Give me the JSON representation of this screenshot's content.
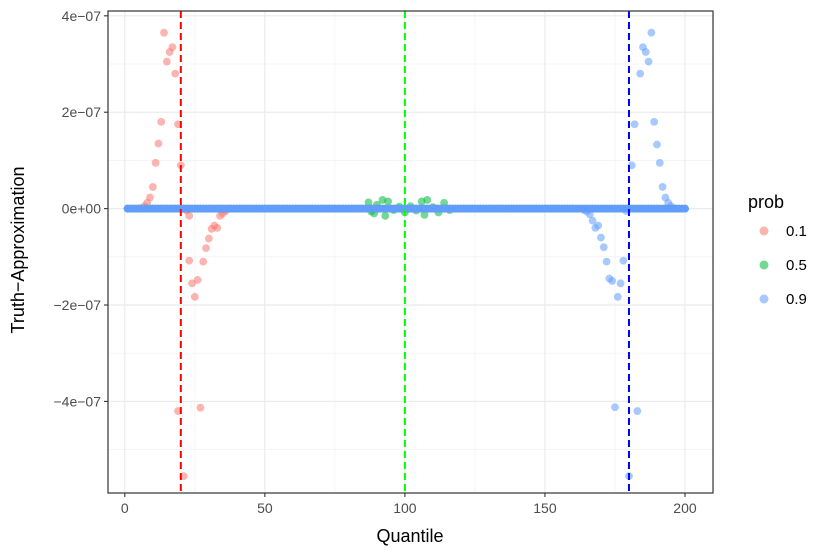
{
  "chart_data": {
    "type": "scatter",
    "xlabel": "Quantile",
    "ylabel": "Truth−Approximation",
    "xlim": [
      -6,
      210
    ],
    "ylim": [
      -5.9e-07,
      4.1e-07
    ],
    "x_ticks": [
      0,
      50,
      100,
      150,
      200
    ],
    "x_tick_labels": [
      "0",
      "50",
      "100",
      "150",
      "200"
    ],
    "y_ticks": [
      4e-07,
      2e-07,
      0,
      -2e-07,
      -4e-07
    ],
    "y_tick_labels": [
      "4e−07",
      "2e−07",
      "0e+00",
      "−2e−07",
      "−4e−07"
    ],
    "grid": true,
    "legend": {
      "title": "prob",
      "position": "right"
    },
    "series": [
      {
        "name": "0.1",
        "color": "#F8766D",
        "points": [
          [
            3,
            0.0
          ],
          [
            5,
            0.0
          ],
          [
            6,
            1e-09
          ],
          [
            7,
            5e-09
          ],
          [
            8,
            1.2e-08
          ],
          [
            9,
            2.3e-08
          ],
          [
            10,
            4.5e-08
          ],
          [
            11,
            9.5e-08
          ],
          [
            12,
            1.35e-07
          ],
          [
            13,
            1.8e-07
          ],
          [
            14,
            3.65e-07
          ],
          [
            15,
            3.05e-07
          ],
          [
            16,
            3.25e-07
          ],
          [
            17,
            3.35e-07
          ],
          [
            18,
            2.8e-07
          ],
          [
            19,
            1.75e-07
          ],
          [
            20,
            9e-08
          ],
          [
            21,
            -5.55e-07
          ],
          [
            22,
            -4e-09
          ],
          [
            23,
            -1.08e-07
          ],
          [
            23,
            -1.5e-08
          ],
          [
            24,
            -1.55e-07
          ],
          [
            25,
            -1.83e-07
          ],
          [
            26,
            -1.48e-07
          ],
          [
            27,
            -4.13e-07
          ],
          [
            28,
            -1.1e-07
          ],
          [
            29,
            -8.2e-08
          ],
          [
            30,
            -6.2e-08
          ],
          [
            31,
            -4.2e-08
          ],
          [
            32,
            -3.5e-08
          ],
          [
            33,
            -4e-08
          ],
          [
            34,
            -1.5e-08
          ],
          [
            35,
            -1e-08
          ],
          [
            36,
            -5e-09
          ],
          [
            19,
            -4.2e-07
          ]
        ],
        "zero_band": [
          1,
          160
        ]
      },
      {
        "name": "0.5",
        "color": "#00BA38",
        "points": [
          [
            87,
            1.3e-08
          ],
          [
            88,
            -6e-09
          ],
          [
            89,
            -1e-08
          ],
          [
            90,
            8e-09
          ],
          [
            92,
            1.8e-08
          ],
          [
            93,
            -1.5e-08
          ],
          [
            94,
            1.5e-08
          ],
          [
            96,
            -3e-09
          ],
          [
            98,
            4e-09
          ],
          [
            100,
            -8e-09
          ],
          [
            102,
            5e-09
          ],
          [
            104,
            -4e-09
          ],
          [
            106,
            1.5e-08
          ],
          [
            107,
            -1.3e-08
          ],
          [
            108,
            1.8e-08
          ],
          [
            110,
            3e-09
          ],
          [
            112,
            -8e-09
          ],
          [
            114,
            1.2e-08
          ],
          [
            116,
            -3e-09
          ]
        ],
        "zero_band": [
          1,
          200
        ]
      },
      {
        "name": "0.9",
        "color": "#619CFF",
        "points": [
          [
            164,
            -3e-09
          ],
          [
            165,
            -6e-09
          ],
          [
            166,
            -1.2e-08
          ],
          [
            167,
            -2.5e-08
          ],
          [
            168,
            -4e-08
          ],
          [
            169,
            -3.5e-08
          ],
          [
            170,
            -6e-08
          ],
          [
            171,
            -8e-08
          ],
          [
            172,
            -1.1e-07
          ],
          [
            173,
            -1.45e-07
          ],
          [
            174,
            -1.5e-07
          ],
          [
            175,
            -4.12e-07
          ],
          [
            176,
            -1.83e-07
          ],
          [
            177,
            -1.55e-07
          ],
          [
            178,
            -1.08e-07
          ],
          [
            179,
            -5e-09
          ],
          [
            180,
            -5.55e-07
          ],
          [
            181,
            9e-08
          ],
          [
            182,
            1.75e-07
          ],
          [
            183,
            -4.2e-07
          ],
          [
            184,
            2.8e-07
          ],
          [
            185,
            3.35e-07
          ],
          [
            186,
            3.25e-07
          ],
          [
            187,
            3.05e-07
          ],
          [
            188,
            3.65e-07
          ],
          [
            189,
            1.8e-07
          ],
          [
            190,
            1.33e-07
          ],
          [
            191,
            9.5e-08
          ],
          [
            192,
            4.5e-08
          ],
          [
            193,
            2.3e-08
          ],
          [
            194,
            1.2e-08
          ],
          [
            195,
            5e-09
          ],
          [
            196,
            1e-09
          ]
        ],
        "zero_band": [
          1,
          200
        ]
      }
    ],
    "vlines": [
      {
        "x": 20,
        "color": "#FF0000"
      },
      {
        "x": 100,
        "color": "#00FF00"
      },
      {
        "x": 180,
        "color": "#0000FF"
      }
    ]
  }
}
